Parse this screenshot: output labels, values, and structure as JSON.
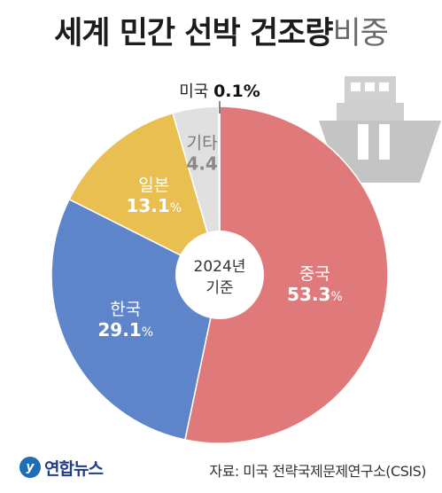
{
  "header": {
    "title_main": "세계 민간 선박 건조량",
    "title_sub": "비중"
  },
  "chart_data": {
    "type": "pie",
    "categories": [
      "중국",
      "한국",
      "일본",
      "기타",
      "미국"
    ],
    "values": [
      53.3,
      29.1,
      13.1,
      4.4,
      0.1
    ],
    "value_labels": [
      "53.3",
      "29.1",
      "13.1",
      "4.4",
      "0.1"
    ],
    "unit": "%",
    "center_label_line1": "2024년",
    "center_label_line2": "기준",
    "colors": [
      "#e07a7a",
      "#5e85c9",
      "#e9bf52",
      "#e0e0e0",
      "#111111"
    ]
  },
  "footer": {
    "logo_mark": "y",
    "logo_text": "연합뉴스",
    "source": "자료: 미국 전략국제문제연구소(CSIS)"
  },
  "icons": {
    "ship": "ship-icon"
  }
}
